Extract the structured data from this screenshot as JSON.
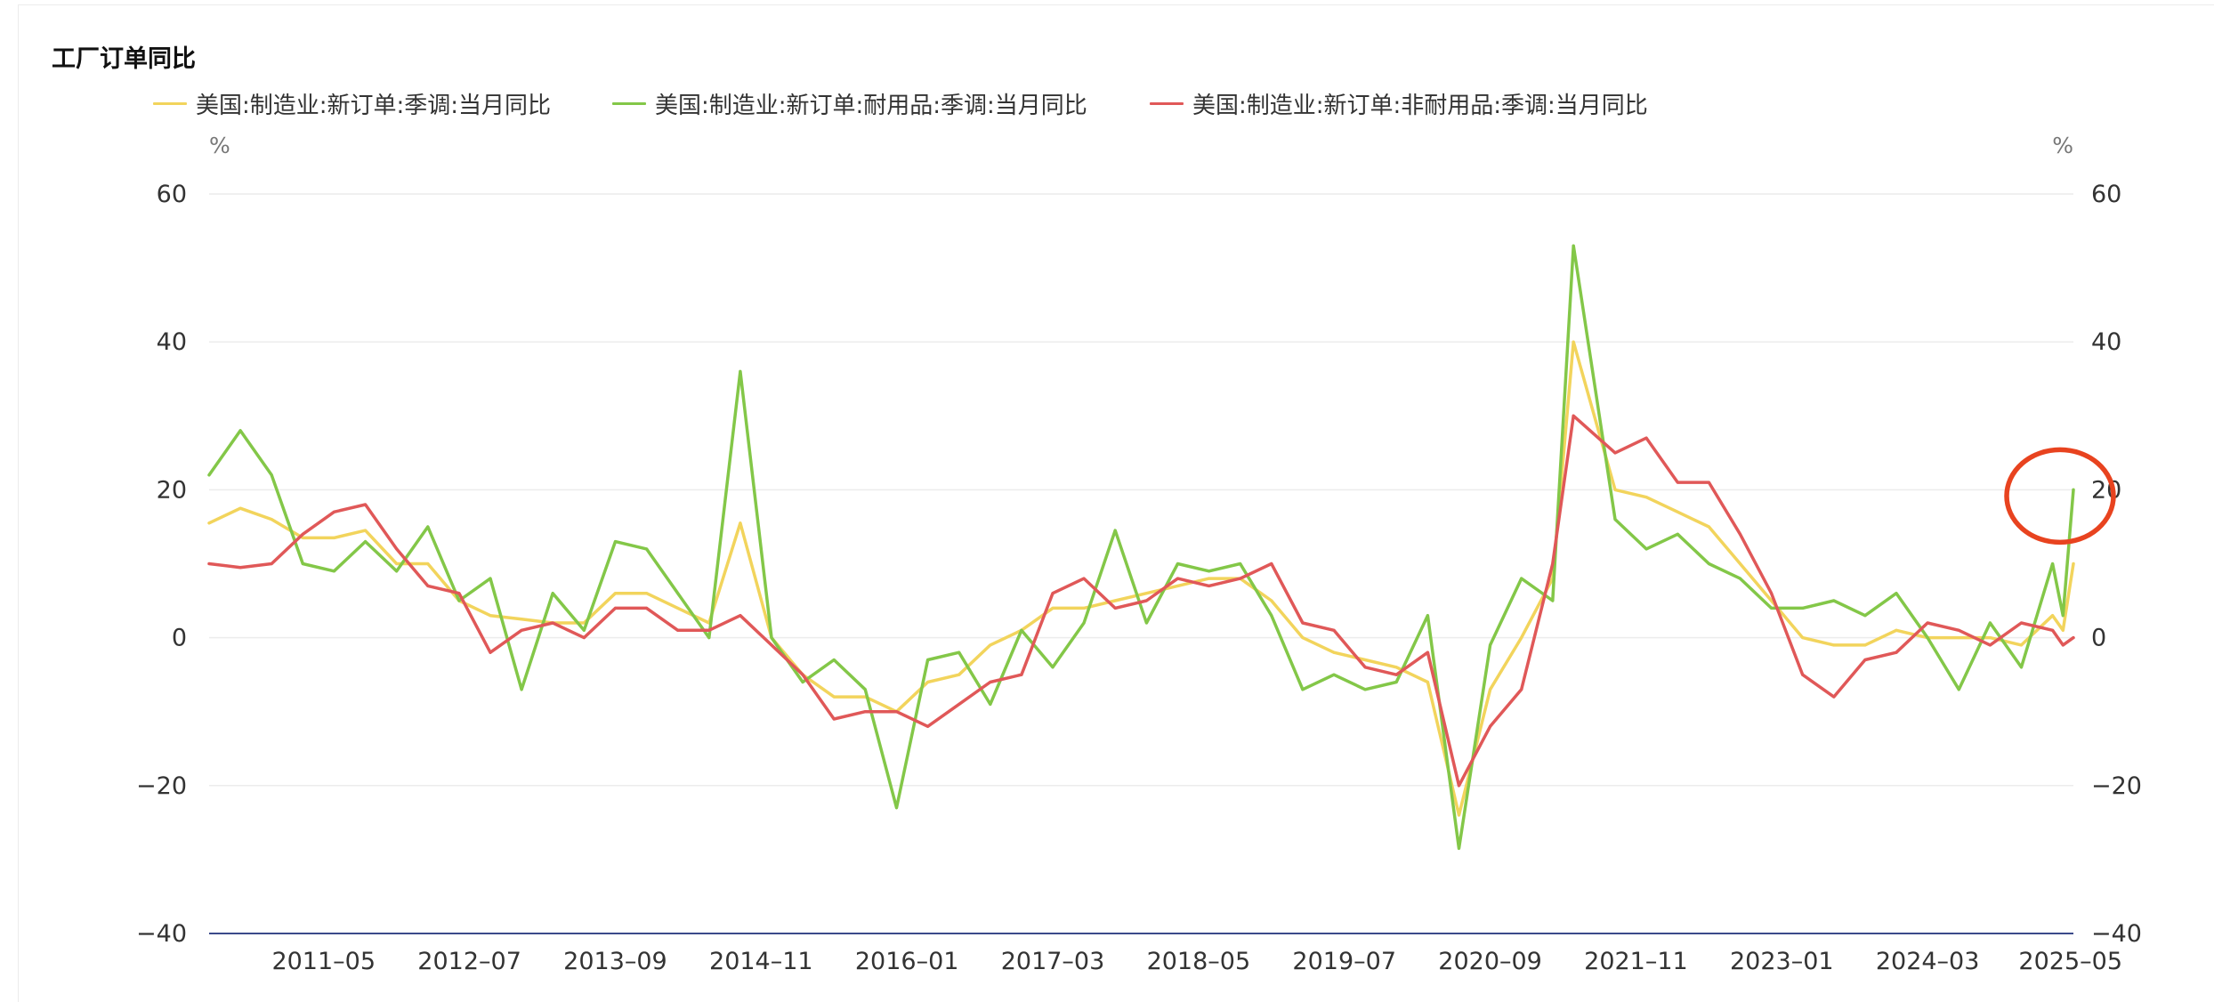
{
  "chart_data": {
    "type": "line",
    "title": "工厂订单同比",
    "y_unit_left": "%",
    "y_unit_right": "%",
    "ylim": [
      -40,
      60
    ],
    "yticks": [
      -40,
      -20,
      0,
      20,
      40,
      60
    ],
    "yticks_labels": [
      "−40",
      "−20",
      "0",
      "20",
      "40",
      "60"
    ],
    "x_start": "2010-06",
    "x_end": "2025-05",
    "xticks": [
      "2011-05",
      "2012-07",
      "2013-09",
      "2014-11",
      "2016-01",
      "2017-03",
      "2018-05",
      "2019-07",
      "2020-09",
      "2021-11",
      "2023-01",
      "2024-03",
      "2025-05"
    ],
    "xticks_labels": [
      "2011–05",
      "2012–07",
      "2013–09",
      "2014–11",
      "2016–01",
      "2017–03",
      "2018–05",
      "2019–07",
      "2020–09",
      "2021–11",
      "2023–01",
      "2024–03",
      "2025–05"
    ],
    "grid": true,
    "legend_position": "top-left",
    "annotation": {
      "type": "circle",
      "color": "#e8431f",
      "x": "2025-05",
      "y": 20
    },
    "series": [
      {
        "name": "美国:制造业:新订单:季调:当月同比",
        "color": "#f2d45c",
        "points": [
          [
            "2010-06",
            15.5
          ],
          [
            "2010-09",
            17.5
          ],
          [
            "2010-12",
            16
          ],
          [
            "2011-03",
            13.5
          ],
          [
            "2011-06",
            13.5
          ],
          [
            "2011-09",
            14.5
          ],
          [
            "2011-12",
            10
          ],
          [
            "2012-03",
            10
          ],
          [
            "2012-06",
            5
          ],
          [
            "2012-09",
            3
          ],
          [
            "2012-12",
            2.5
          ],
          [
            "2013-03",
            2
          ],
          [
            "2013-06",
            2
          ],
          [
            "2013-09",
            6
          ],
          [
            "2013-12",
            6
          ],
          [
            "2014-03",
            4
          ],
          [
            "2014-06",
            2
          ],
          [
            "2014-09",
            15.5
          ],
          [
            "2014-12",
            0
          ],
          [
            "2015-03",
            -5
          ],
          [
            "2015-06",
            -8
          ],
          [
            "2015-09",
            -8
          ],
          [
            "2015-12",
            -10
          ],
          [
            "2016-03",
            -6
          ],
          [
            "2016-06",
            -5
          ],
          [
            "2016-09",
            -1
          ],
          [
            "2016-12",
            1
          ],
          [
            "2017-03",
            4
          ],
          [
            "2017-06",
            4
          ],
          [
            "2017-09",
            5
          ],
          [
            "2017-12",
            6
          ],
          [
            "2018-03",
            7
          ],
          [
            "2018-06",
            8
          ],
          [
            "2018-09",
            8
          ],
          [
            "2018-12",
            5
          ],
          [
            "2019-03",
            0
          ],
          [
            "2019-06",
            -2
          ],
          [
            "2019-09",
            -3
          ],
          [
            "2019-12",
            -4
          ],
          [
            "2020-03",
            -6
          ],
          [
            "2020-06",
            -24
          ],
          [
            "2020-09",
            -7
          ],
          [
            "2020-12",
            0
          ],
          [
            "2021-03",
            8
          ],
          [
            "2021-05",
            40
          ],
          [
            "2021-09",
            20
          ],
          [
            "2021-12",
            19
          ],
          [
            "2022-03",
            17
          ],
          [
            "2022-06",
            15
          ],
          [
            "2022-09",
            10
          ],
          [
            "2022-12",
            5
          ],
          [
            "2023-03",
            0
          ],
          [
            "2023-06",
            -1
          ],
          [
            "2023-09",
            -1
          ],
          [
            "2023-12",
            1
          ],
          [
            "2024-03",
            0
          ],
          [
            "2024-06",
            0
          ],
          [
            "2024-09",
            0
          ],
          [
            "2024-12",
            -1
          ],
          [
            "2025-03",
            3
          ],
          [
            "2025-04",
            1
          ],
          [
            "2025-05",
            10
          ]
        ]
      },
      {
        "name": "美国:制造业:新订单:耐用品:季调:当月同比",
        "color": "#83c748",
        "points": [
          [
            "2010-06",
            22
          ],
          [
            "2010-09",
            28
          ],
          [
            "2010-12",
            22
          ],
          [
            "2011-03",
            10
          ],
          [
            "2011-06",
            9
          ],
          [
            "2011-09",
            13
          ],
          [
            "2011-12",
            9
          ],
          [
            "2012-03",
            15
          ],
          [
            "2012-06",
            5
          ],
          [
            "2012-09",
            8
          ],
          [
            "2012-12",
            -7
          ],
          [
            "2013-03",
            6
          ],
          [
            "2013-06",
            1
          ],
          [
            "2013-09",
            13
          ],
          [
            "2013-12",
            12
          ],
          [
            "2014-03",
            6
          ],
          [
            "2014-06",
            0
          ],
          [
            "2014-09",
            36
          ],
          [
            "2014-12",
            0
          ],
          [
            "2015-03",
            -6
          ],
          [
            "2015-06",
            -3
          ],
          [
            "2015-09",
            -7
          ],
          [
            "2015-12",
            -23
          ],
          [
            "2016-03",
            -3
          ],
          [
            "2016-06",
            -2
          ],
          [
            "2016-09",
            -9
          ],
          [
            "2016-12",
            1
          ],
          [
            "2017-03",
            -4
          ],
          [
            "2017-06",
            2
          ],
          [
            "2017-09",
            14.5
          ],
          [
            "2017-12",
            2
          ],
          [
            "2018-03",
            10
          ],
          [
            "2018-06",
            9
          ],
          [
            "2018-09",
            10
          ],
          [
            "2018-12",
            3
          ],
          [
            "2019-03",
            -7
          ],
          [
            "2019-06",
            -5
          ],
          [
            "2019-09",
            -7
          ],
          [
            "2019-12",
            -6
          ],
          [
            "2020-03",
            3
          ],
          [
            "2020-06",
            -28.5
          ],
          [
            "2020-09",
            -1
          ],
          [
            "2020-12",
            8
          ],
          [
            "2021-03",
            5
          ],
          [
            "2021-05",
            53
          ],
          [
            "2021-09",
            16
          ],
          [
            "2021-12",
            12
          ],
          [
            "2022-03",
            14
          ],
          [
            "2022-06",
            10
          ],
          [
            "2022-09",
            8
          ],
          [
            "2022-12",
            4
          ],
          [
            "2023-03",
            4
          ],
          [
            "2023-06",
            5
          ],
          [
            "2023-09",
            3
          ],
          [
            "2023-12",
            6
          ],
          [
            "2024-03",
            0
          ],
          [
            "2024-06",
            -7
          ],
          [
            "2024-09",
            2
          ],
          [
            "2024-12",
            -4
          ],
          [
            "2025-03",
            10
          ],
          [
            "2025-04",
            3
          ],
          [
            "2025-05",
            20
          ]
        ]
      },
      {
        "name": "美国:制造业:新订单:非耐用品:季调:当月同比",
        "color": "#e05858",
        "points": [
          [
            "2010-06",
            10
          ],
          [
            "2010-09",
            9.5
          ],
          [
            "2010-12",
            10
          ],
          [
            "2011-03",
            14
          ],
          [
            "2011-06",
            17
          ],
          [
            "2011-09",
            18
          ],
          [
            "2011-12",
            12
          ],
          [
            "2012-03",
            7
          ],
          [
            "2012-06",
            6
          ],
          [
            "2012-09",
            -2
          ],
          [
            "2012-12",
            1
          ],
          [
            "2013-03",
            2
          ],
          [
            "2013-06",
            0
          ],
          [
            "2013-09",
            4
          ],
          [
            "2013-12",
            4
          ],
          [
            "2014-03",
            1
          ],
          [
            "2014-06",
            1
          ],
          [
            "2014-09",
            3
          ],
          [
            "2014-12",
            -1
          ],
          [
            "2015-03",
            -5
          ],
          [
            "2015-06",
            -11
          ],
          [
            "2015-09",
            -10
          ],
          [
            "2015-12",
            -10
          ],
          [
            "2016-03",
            -12
          ],
          [
            "2016-06",
            -9
          ],
          [
            "2016-09",
            -6
          ],
          [
            "2016-12",
            -5
          ],
          [
            "2017-03",
            6
          ],
          [
            "2017-06",
            8
          ],
          [
            "2017-09",
            4
          ],
          [
            "2017-12",
            5
          ],
          [
            "2018-03",
            8
          ],
          [
            "2018-06",
            7
          ],
          [
            "2018-09",
            8
          ],
          [
            "2018-12",
            10
          ],
          [
            "2019-03",
            2
          ],
          [
            "2019-06",
            1
          ],
          [
            "2019-09",
            -4
          ],
          [
            "2019-12",
            -5
          ],
          [
            "2020-03",
            -2
          ],
          [
            "2020-06",
            -20
          ],
          [
            "2020-09",
            -12
          ],
          [
            "2020-12",
            -7
          ],
          [
            "2021-03",
            10
          ],
          [
            "2021-05",
            30
          ],
          [
            "2021-09",
            25
          ],
          [
            "2021-12",
            27
          ],
          [
            "2022-03",
            21
          ],
          [
            "2022-06",
            21
          ],
          [
            "2022-09",
            14
          ],
          [
            "2022-12",
            6
          ],
          [
            "2023-03",
            -5
          ],
          [
            "2023-06",
            -8
          ],
          [
            "2023-09",
            -3
          ],
          [
            "2023-12",
            -2
          ],
          [
            "2024-03",
            2
          ],
          [
            "2024-06",
            1
          ],
          [
            "2024-09",
            -1
          ],
          [
            "2024-12",
            2
          ],
          [
            "2025-03",
            1
          ],
          [
            "2025-04",
            -1
          ],
          [
            "2025-05",
            0
          ]
        ]
      }
    ]
  }
}
